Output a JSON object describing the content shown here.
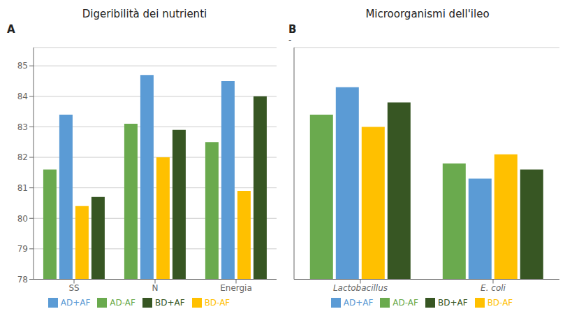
{
  "chart_data": [
    {
      "type": "bar",
      "title": "Digeribilità dei nutrienti",
      "annotations": [
        "A"
      ],
      "categories": [
        "SS",
        "N",
        "Energia"
      ],
      "series": [
        {
          "name": "AD-AF",
          "color": "#6aaa4e",
          "values": [
            81.6,
            83.1,
            82.5
          ]
        },
        {
          "name": "AD+AF",
          "color": "#5b9bd5",
          "values": [
            83.4,
            84.7,
            84.5
          ]
        },
        {
          "name": "BD-AF",
          "color": "#ffc000",
          "values": [
            80.4,
            82.0,
            80.9
          ]
        },
        {
          "name": "BD+AF",
          "color": "#375623",
          "values": [
            80.7,
            82.9,
            84.0
          ]
        }
      ],
      "ylim": [
        78,
        85.6
      ],
      "yticks": [
        78,
        79,
        80,
        81,
        82,
        83,
        84,
        85
      ],
      "grid": true,
      "legend": "bottom"
    },
    {
      "type": "bar",
      "title": "Microorganismi dell'ileo",
      "annotations": [
        "B",
        "-"
      ],
      "categories": [
        "Lactobacillus",
        "E. coli"
      ],
      "series": [
        {
          "name": "AD-AF",
          "color": "#6aaa4e",
          "values": [
            83.4,
            81.8
          ]
        },
        {
          "name": "AD+AF",
          "color": "#5b9bd5",
          "values": [
            84.3,
            81.3
          ]
        },
        {
          "name": "BD-AF",
          "color": "#ffc000",
          "values": [
            83.0,
            82.1
          ]
        },
        {
          "name": "BD+AF",
          "color": "#375623",
          "values": [
            83.8,
            81.6
          ]
        }
      ],
      "ylim": [
        78,
        85.6
      ],
      "yticks": [
        78,
        79,
        80,
        81,
        82,
        83,
        84,
        85
      ],
      "grid": true,
      "legend": "bottom",
      "tick_labels": "x"
    }
  ]
}
